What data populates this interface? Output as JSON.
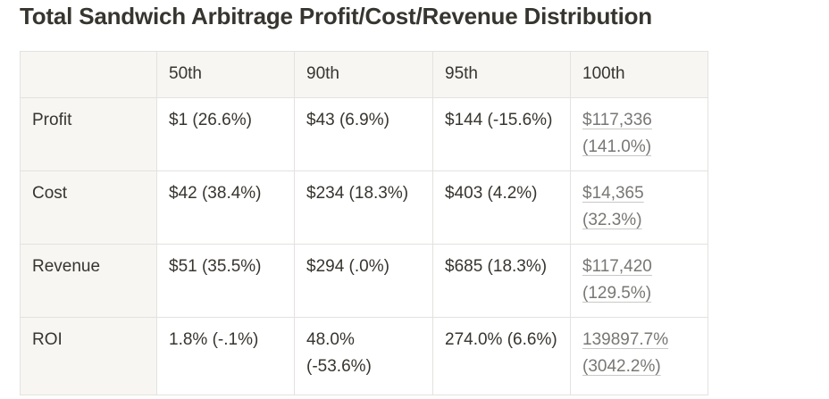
{
  "title": "Total Sandwich Arbitrage Profit/Cost/Revenue Distribution",
  "table": {
    "columns": [
      "",
      "50th",
      "90th",
      "95th",
      "100th"
    ],
    "rows": [
      {
        "label": "Profit",
        "cells": [
          "$1 (26.6%)",
          "$43 (6.9%)",
          "$144 (-15.6%)",
          "$117,336 (141.0%)"
        ]
      },
      {
        "label": "Cost",
        "cells": [
          "$42 (38.4%)",
          "$234 (18.3%)",
          "$403 (4.2%)",
          "$14,365 (32.3%)"
        ]
      },
      {
        "label": "Revenue",
        "cells": [
          "$51 (35.5%)",
          "$294 (.0%)",
          "$685 (18.3%)",
          "$117,420 (129.5%)"
        ]
      },
      {
        "label": "ROI",
        "cells": [
          "1.8% (-.1%)",
          "48.0% (-53.6%)",
          "274.0% (6.6%)",
          "139897.7% (3042.2%)"
        ]
      }
    ]
  },
  "colors": {
    "text": "#37352f",
    "header_background": "#f7f6f3",
    "border": "#e3e2e0",
    "linked_text": "#787774"
  }
}
